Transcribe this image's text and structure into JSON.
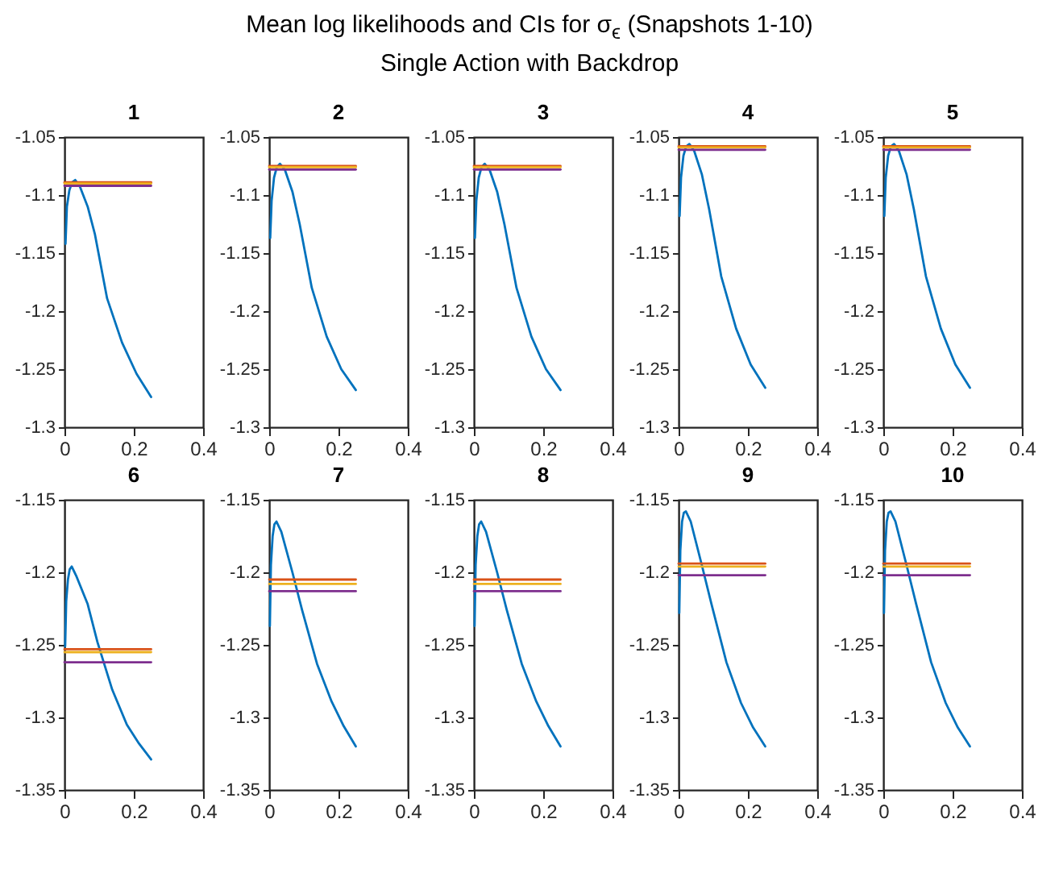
{
  "chart_data": [
    {
      "type": "other",
      "title": "Mean log likelihoods and CIs for σ$_{ϵ}$ (Snapshots 1-10)",
      "subtitle": "Single Action with Backdrop"
    },
    {
      "type": "line",
      "title": "1",
      "xlim": [
        0,
        0.4
      ],
      "xticks": [
        0,
        0.2,
        0.4
      ],
      "ylim": [
        -1.3,
        -1.05
      ],
      "yticks": [
        -1.3,
        -1.25,
        -1.2,
        -1.15,
        -1.1,
        -1.05
      ],
      "series": [
        {
          "color": "#0072bd",
          "x": [
            0.003,
            0.007,
            0.014,
            0.022,
            0.031,
            0.045,
            0.067,
            0.088,
            0.123,
            0.166,
            0.208,
            0.25
          ],
          "values": [
            -1.142,
            -1.11,
            -1.096,
            -1.089,
            -1.087,
            -1.093,
            -1.11,
            -1.134,
            -1.189,
            -1.227,
            -1.254,
            -1.274
          ]
        },
        {
          "color": "#d95319",
          "x": [
            0,
            0.25
          ],
          "values": [
            -1.089,
            -1.089
          ]
        },
        {
          "color": "#edb120",
          "x": [
            0,
            0.25
          ],
          "values": [
            -1.09,
            -1.09
          ]
        },
        {
          "color": "#7e2f8e",
          "x": [
            0,
            0.25
          ],
          "values": [
            -1.092,
            -1.092
          ]
        }
      ]
    },
    {
      "type": "line",
      "title": "2",
      "xlim": [
        0,
        0.4
      ],
      "xticks": [
        0,
        0.2,
        0.4
      ],
      "ylim": [
        -1.3,
        -1.05
      ],
      "yticks": [
        -1.3,
        -1.25,
        -1.2,
        -1.15,
        -1.1,
        -1.05
      ],
      "series": [
        {
          "color": "#0072bd",
          "x": [
            0.003,
            0.007,
            0.014,
            0.022,
            0.031,
            0.045,
            0.067,
            0.088,
            0.123,
            0.166,
            0.208,
            0.25
          ],
          "values": [
            -1.137,
            -1.105,
            -1.085,
            -1.076,
            -1.073,
            -1.078,
            -1.097,
            -1.125,
            -1.18,
            -1.222,
            -1.25,
            -1.268
          ]
        },
        {
          "color": "#d95319",
          "x": [
            0,
            0.25
          ],
          "values": [
            -1.075,
            -1.075
          ]
        },
        {
          "color": "#edb120",
          "x": [
            0,
            0.25
          ],
          "values": [
            -1.076,
            -1.076
          ]
        },
        {
          "color": "#7e2f8e",
          "x": [
            0,
            0.25
          ],
          "values": [
            -1.078,
            -1.078
          ]
        }
      ]
    },
    {
      "type": "line",
      "title": "3",
      "xlim": [
        0,
        0.4
      ],
      "xticks": [
        0,
        0.2,
        0.4
      ],
      "ylim": [
        -1.3,
        -1.05
      ],
      "yticks": [
        -1.3,
        -1.25,
        -1.2,
        -1.15,
        -1.1,
        -1.05
      ],
      "series": [
        {
          "color": "#0072bd",
          "x": [
            0.003,
            0.007,
            0.014,
            0.022,
            0.031,
            0.045,
            0.067,
            0.088,
            0.123,
            0.166,
            0.208,
            0.25
          ],
          "values": [
            -1.137,
            -1.105,
            -1.085,
            -1.076,
            -1.073,
            -1.078,
            -1.097,
            -1.125,
            -1.18,
            -1.222,
            -1.25,
            -1.268
          ]
        },
        {
          "color": "#d95319",
          "x": [
            0,
            0.25
          ],
          "values": [
            -1.075,
            -1.075
          ]
        },
        {
          "color": "#edb120",
          "x": [
            0,
            0.25
          ],
          "values": [
            -1.076,
            -1.076
          ]
        },
        {
          "color": "#7e2f8e",
          "x": [
            0,
            0.25
          ],
          "values": [
            -1.078,
            -1.078
          ]
        }
      ]
    },
    {
      "type": "line",
      "title": "4",
      "xlim": [
        0,
        0.4
      ],
      "xticks": [
        0,
        0.2,
        0.4
      ],
      "ylim": [
        -1.3,
        -1.05
      ],
      "yticks": [
        -1.3,
        -1.25,
        -1.2,
        -1.15,
        -1.1,
        -1.05
      ],
      "series": [
        {
          "color": "#0072bd",
          "x": [
            0.003,
            0.007,
            0.014,
            0.022,
            0.031,
            0.045,
            0.067,
            0.088,
            0.123,
            0.166,
            0.208,
            0.25
          ],
          "values": [
            -1.118,
            -1.085,
            -1.066,
            -1.058,
            -1.056,
            -1.062,
            -1.082,
            -1.112,
            -1.17,
            -1.215,
            -1.246,
            -1.266
          ]
        },
        {
          "color": "#d95319",
          "x": [
            0,
            0.25
          ],
          "values": [
            -1.058,
            -1.058
          ]
        },
        {
          "color": "#edb120",
          "x": [
            0,
            0.25
          ],
          "values": [
            -1.059,
            -1.059
          ]
        },
        {
          "color": "#7e2f8e",
          "x": [
            0,
            0.25
          ],
          "values": [
            -1.061,
            -1.061
          ]
        }
      ]
    },
    {
      "type": "line",
      "title": "5",
      "xlim": [
        0,
        0.4
      ],
      "xticks": [
        0,
        0.2,
        0.4
      ],
      "ylim": [
        -1.3,
        -1.05
      ],
      "yticks": [
        -1.3,
        -1.25,
        -1.2,
        -1.15,
        -1.1,
        -1.05
      ],
      "series": [
        {
          "color": "#0072bd",
          "x": [
            0.003,
            0.007,
            0.014,
            0.022,
            0.031,
            0.045,
            0.067,
            0.088,
            0.123,
            0.166,
            0.208,
            0.25
          ],
          "values": [
            -1.118,
            -1.085,
            -1.066,
            -1.058,
            -1.056,
            -1.062,
            -1.082,
            -1.112,
            -1.17,
            -1.215,
            -1.246,
            -1.266
          ]
        },
        {
          "color": "#d95319",
          "x": [
            0,
            0.25
          ],
          "values": [
            -1.058,
            -1.058
          ]
        },
        {
          "color": "#edb120",
          "x": [
            0,
            0.25
          ],
          "values": [
            -1.059,
            -1.059
          ]
        },
        {
          "color": "#7e2f8e",
          "x": [
            0,
            0.25
          ],
          "values": [
            -1.061,
            -1.061
          ]
        }
      ]
    },
    {
      "type": "line",
      "title": "6",
      "xlim": [
        0,
        0.4
      ],
      "xticks": [
        0,
        0.2,
        0.4
      ],
      "ylim": [
        -1.35,
        -1.15
      ],
      "yticks": [
        -1.35,
        -1.3,
        -1.25,
        -1.2,
        -1.15
      ],
      "series": [
        {
          "color": "#0072bd",
          "x": [
            0.002,
            0.005,
            0.01,
            0.015,
            0.021,
            0.035,
            0.067,
            0.095,
            0.138,
            0.18,
            0.215,
            0.25
          ],
          "values": [
            -1.251,
            -1.22,
            -1.205,
            -1.198,
            -1.196,
            -1.203,
            -1.222,
            -1.248,
            -1.281,
            -1.305,
            -1.318,
            -1.329
          ]
        },
        {
          "color": "#d95319",
          "x": [
            0,
            0.25
          ],
          "values": [
            -1.253,
            -1.253
          ]
        },
        {
          "color": "#edb120",
          "x": [
            0,
            0.25
          ],
          "values": [
            -1.255,
            -1.255
          ]
        },
        {
          "color": "#7e2f8e",
          "x": [
            0,
            0.25
          ],
          "values": [
            -1.262,
            -1.262
          ]
        }
      ]
    },
    {
      "type": "line",
      "title": "7",
      "xlim": [
        0,
        0.4
      ],
      "xticks": [
        0,
        0.2,
        0.4
      ],
      "ylim": [
        -1.35,
        -1.15
      ],
      "yticks": [
        -1.35,
        -1.3,
        -1.25,
        -1.2,
        -1.15
      ],
      "series": [
        {
          "color": "#0072bd",
          "x": [
            0.002,
            0.005,
            0.01,
            0.015,
            0.021,
            0.035,
            0.067,
            0.095,
            0.138,
            0.18,
            0.215,
            0.25
          ],
          "values": [
            -1.237,
            -1.195,
            -1.175,
            -1.167,
            -1.165,
            -1.172,
            -1.2,
            -1.226,
            -1.263,
            -1.289,
            -1.306,
            -1.32
          ]
        },
        {
          "color": "#d95319",
          "x": [
            0,
            0.25
          ],
          "values": [
            -1.205,
            -1.205
          ]
        },
        {
          "color": "#edb120",
          "x": [
            0,
            0.25
          ],
          "values": [
            -1.208,
            -1.208
          ]
        },
        {
          "color": "#7e2f8e",
          "x": [
            0,
            0.25
          ],
          "values": [
            -1.213,
            -1.213
          ]
        }
      ]
    },
    {
      "type": "line",
      "title": "8",
      "xlim": [
        0,
        0.4
      ],
      "xticks": [
        0,
        0.2,
        0.4
      ],
      "ylim": [
        -1.35,
        -1.15
      ],
      "yticks": [
        -1.35,
        -1.3,
        -1.25,
        -1.2,
        -1.15
      ],
      "series": [
        {
          "color": "#0072bd",
          "x": [
            0.002,
            0.005,
            0.01,
            0.015,
            0.021,
            0.035,
            0.067,
            0.095,
            0.138,
            0.18,
            0.215,
            0.25
          ],
          "values": [
            -1.237,
            -1.195,
            -1.175,
            -1.167,
            -1.165,
            -1.172,
            -1.2,
            -1.226,
            -1.263,
            -1.289,
            -1.306,
            -1.32
          ]
        },
        {
          "color": "#d95319",
          "x": [
            0,
            0.25
          ],
          "values": [
            -1.205,
            -1.205
          ]
        },
        {
          "color": "#edb120",
          "x": [
            0,
            0.25
          ],
          "values": [
            -1.208,
            -1.208
          ]
        },
        {
          "color": "#7e2f8e",
          "x": [
            0,
            0.25
          ],
          "values": [
            -1.213,
            -1.213
          ]
        }
      ]
    },
    {
      "type": "line",
      "title": "9",
      "xlim": [
        0,
        0.4
      ],
      "xticks": [
        0,
        0.2,
        0.4
      ],
      "ylim": [
        -1.35,
        -1.15
      ],
      "yticks": [
        -1.35,
        -1.3,
        -1.25,
        -1.2,
        -1.15
      ],
      "series": [
        {
          "color": "#0072bd",
          "x": [
            0.002,
            0.005,
            0.01,
            0.015,
            0.021,
            0.035,
            0.067,
            0.095,
            0.138,
            0.18,
            0.215,
            0.25
          ],
          "values": [
            -1.228,
            -1.185,
            -1.165,
            -1.159,
            -1.158,
            -1.165,
            -1.195,
            -1.222,
            -1.262,
            -1.29,
            -1.307,
            -1.32
          ]
        },
        {
          "color": "#d95319",
          "x": [
            0,
            0.25
          ],
          "values": [
            -1.194,
            -1.194
          ]
        },
        {
          "color": "#edb120",
          "x": [
            0,
            0.25
          ],
          "values": [
            -1.196,
            -1.196
          ]
        },
        {
          "color": "#7e2f8e",
          "x": [
            0,
            0.25
          ],
          "values": [
            -1.202,
            -1.202
          ]
        }
      ]
    },
    {
      "type": "line",
      "title": "10",
      "xlim": [
        0,
        0.4
      ],
      "xticks": [
        0,
        0.2,
        0.4
      ],
      "ylim": [
        -1.35,
        -1.15
      ],
      "yticks": [
        -1.35,
        -1.3,
        -1.25,
        -1.2,
        -1.15
      ],
      "series": [
        {
          "color": "#0072bd",
          "x": [
            0.002,
            0.005,
            0.01,
            0.015,
            0.021,
            0.035,
            0.067,
            0.095,
            0.138,
            0.18,
            0.215,
            0.25
          ],
          "values": [
            -1.228,
            -1.185,
            -1.165,
            -1.159,
            -1.158,
            -1.165,
            -1.195,
            -1.222,
            -1.262,
            -1.29,
            -1.307,
            -1.32
          ]
        },
        {
          "color": "#d95319",
          "x": [
            0,
            0.25
          ],
          "values": [
            -1.194,
            -1.194
          ]
        },
        {
          "color": "#edb120",
          "x": [
            0,
            0.25
          ],
          "values": [
            -1.196,
            -1.196
          ]
        },
        {
          "color": "#7e2f8e",
          "x": [
            0,
            0.25
          ],
          "values": [
            -1.202,
            -1.202
          ]
        }
      ]
    }
  ]
}
